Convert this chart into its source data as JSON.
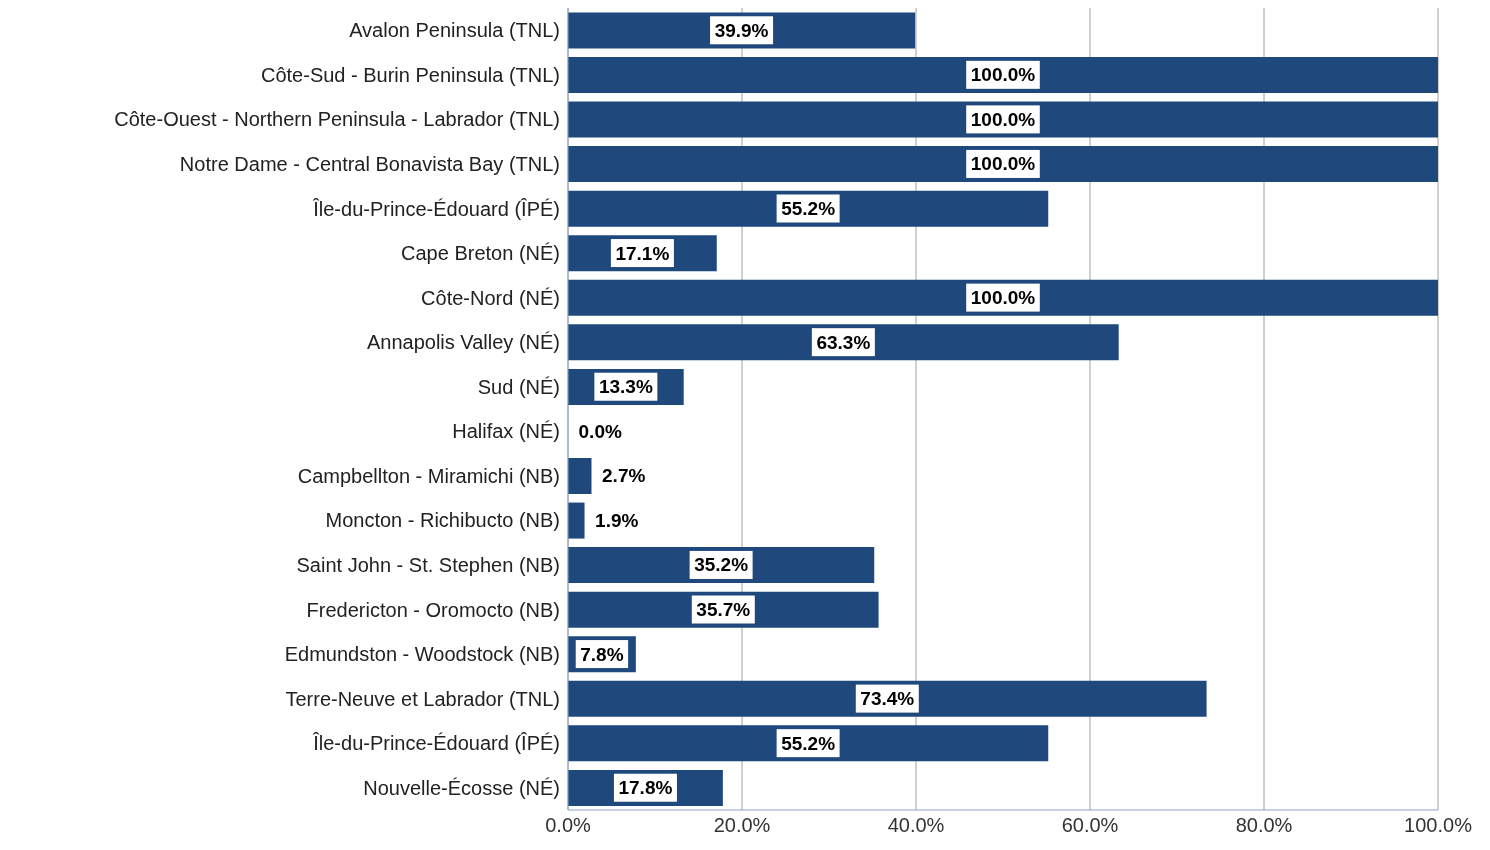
{
  "chart_data": {
    "type": "bar",
    "orientation": "horizontal",
    "categories": [
      "Avalon Peninsula (TNL)",
      "Côte-Sud - Burin Peninsula (TNL)",
      "Côte-Ouest - Northern Peninsula - Labrador (TNL)",
      "Notre Dame - Central Bonavista Bay (TNL)",
      "Île-du-Prince-Édouard (ÎPÉ)",
      "Cape Breton (NÉ)",
      "Côte-Nord (NÉ)",
      "Annapolis Valley (NÉ)",
      "Sud (NÉ)",
      "Halifax (NÉ)",
      "Campbellton - Miramichi (NB)",
      "Moncton - Richibucto (NB)",
      "Saint John - St. Stephen (NB)",
      "Fredericton - Oromocto (NB)",
      "Edmundston - Woodstock (NB)",
      "Terre-Neuve et Labrador (TNL)",
      "Île-du-Prince-Édouard (ÎPÉ)",
      "Nouvelle-Écosse (NÉ)"
    ],
    "values": [
      39.9,
      100,
      100,
      100,
      55.2,
      17.1,
      100,
      63.3,
      13.3,
      0,
      2.7,
      1.9,
      35.2,
      35.7,
      7.8,
      73.4,
      55.2,
      17.8
    ],
    "value_labels": [
      "39.9%",
      "100.0%",
      "100.0%",
      "100.0%",
      "55.2%",
      "17.1%",
      "100.0%",
      "63.3%",
      "13.3%",
      "0.0%",
      "2.7%",
      "1.9%",
      "35.2%",
      "35.7%",
      "7.8%",
      "73.4%",
      "55.2%",
      "17.8%"
    ],
    "color": "#1f497d",
    "xlim": [
      0,
      100
    ],
    "xticks": [
      {
        "value": 0,
        "label": "0.0%"
      },
      {
        "value": 20,
        "label": "20.0%"
      },
      {
        "value": 40,
        "label": "40.0%"
      },
      {
        "value": 60,
        "label": "60.0%"
      },
      {
        "value": 80,
        "label": "80.0%"
      },
      {
        "value": 100,
        "label": "100.0%"
      }
    ],
    "grid": "x",
    "legend": false
  }
}
